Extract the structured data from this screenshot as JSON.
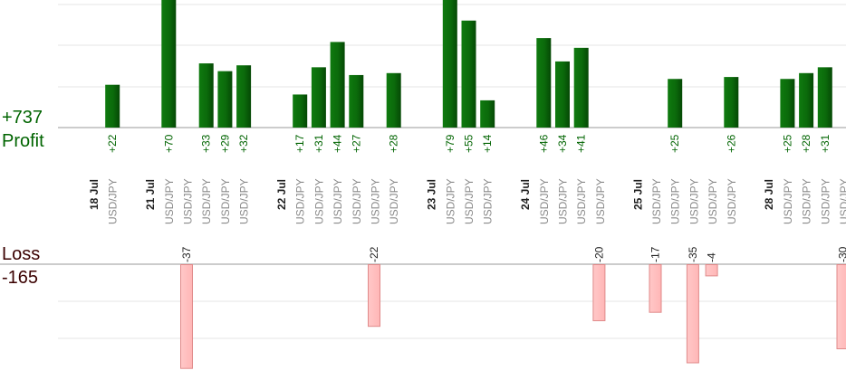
{
  "profit_total": "+737",
  "profit_label": "Profit",
  "loss_label": "Loss",
  "loss_total": "-165",
  "colors": {
    "profit_bar": "#0b6a0b",
    "profit_text": "#006400",
    "loss_bar_fill": "#ffb6b6",
    "loss_bar_stroke": "#e08a8a",
    "grid": "#e6e6e6",
    "axis": "#999999",
    "date_text": "#222222",
    "symbol_text": "#8a8a8a"
  },
  "chart_data": {
    "type": "bar",
    "symbol": "USD/JPY",
    "columns": [
      {
        "date": "18 Jul"
      },
      {
        "symbol": "USD/JPY",
        "profit": 22
      },
      {},
      {
        "date": "21 Jul"
      },
      {
        "symbol": "USD/JPY",
        "profit": 70
      },
      {
        "symbol": "USD/JPY",
        "loss": -37
      },
      {
        "symbol": "USD/JPY",
        "profit": 33
      },
      {
        "symbol": "USD/JPY",
        "profit": 29
      },
      {
        "symbol": "USD/JPY",
        "profit": 32
      },
      {},
      {
        "date": "22 Jul"
      },
      {
        "symbol": "USD/JPY",
        "profit": 17
      },
      {
        "symbol": "USD/JPY",
        "profit": 31
      },
      {
        "symbol": "USD/JPY",
        "profit": 44
      },
      {
        "symbol": "USD/JPY",
        "profit": 27
      },
      {
        "symbol": "USD/JPY",
        "loss": -22
      },
      {
        "symbol": "USD/JPY",
        "profit": 28
      },
      {},
      {
        "date": "23 Jul"
      },
      {
        "symbol": "USD/JPY",
        "profit": 79
      },
      {
        "symbol": "USD/JPY",
        "profit": 55
      },
      {
        "symbol": "USD/JPY",
        "profit": 14
      },
      {},
      {
        "date": "24 Jul"
      },
      {
        "symbol": "USD/JPY",
        "profit": 46
      },
      {
        "symbol": "USD/JPY",
        "profit": 34
      },
      {
        "symbol": "USD/JPY",
        "profit": 41
      },
      {
        "symbol": "USD/JPY",
        "loss": -20
      },
      {},
      {
        "date": "25 Jul"
      },
      {
        "symbol": "USD/JPY",
        "loss": -17
      },
      {
        "symbol": "USD/JPY",
        "profit": 25
      },
      {
        "symbol": "USD/JPY",
        "loss": -35
      },
      {
        "symbol": "USD/JPY",
        "loss": -4
      },
      {
        "symbol": "USD/JPY",
        "profit": 26
      },
      {},
      {
        "date": "28 Jul"
      },
      {
        "symbol": "USD/JPY",
        "profit": 25
      },
      {
        "symbol": "USD/JPY",
        "profit": 28
      },
      {
        "symbol": "USD/JPY",
        "profit": 31
      },
      {
        "symbol": "USD/JPY",
        "loss": -30
      }
    ]
  }
}
